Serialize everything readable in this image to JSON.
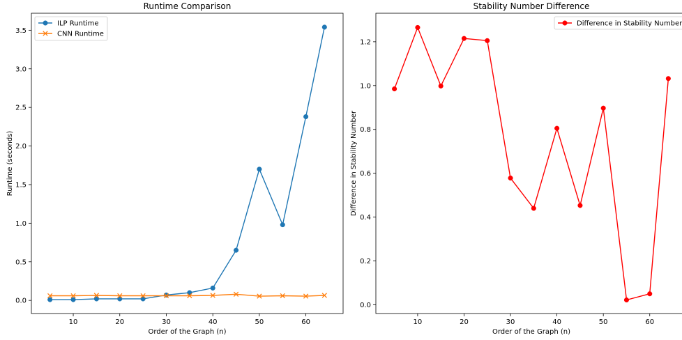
{
  "chart_data": [
    {
      "type": "line",
      "title": "Runtime Comparison",
      "xlabel": "Order of the Graph (n)",
      "ylabel": "Runtime (seconds)",
      "xlim": [
        1,
        68
      ],
      "ylim": [
        -0.17,
        3.72
      ],
      "xticks": [
        10,
        20,
        30,
        40,
        50,
        60
      ],
      "yticks": [
        0.0,
        0.5,
        1.0,
        1.5,
        2.0,
        2.5,
        3.0,
        3.5
      ],
      "x": [
        5,
        10,
        15,
        20,
        25,
        30,
        35,
        40,
        45,
        50,
        55,
        60,
        64
      ],
      "grid": false,
      "legend_position": "top-left",
      "series": [
        {
          "name": "ILP Runtime",
          "color": "#1f77b4",
          "marker": "circle",
          "values": [
            0.01,
            0.01,
            0.02,
            0.02,
            0.02,
            0.07,
            0.1,
            0.16,
            0.65,
            1.7,
            0.98,
            2.38,
            3.54
          ]
        },
        {
          "name": "CNN Runtime",
          "color": "#ff7f0e",
          "marker": "x",
          "values": [
            0.06,
            0.06,
            0.065,
            0.06,
            0.06,
            0.06,
            0.06,
            0.065,
            0.08,
            0.055,
            0.06,
            0.055,
            0.065
          ]
        }
      ]
    },
    {
      "type": "line",
      "title": "Stability Number Difference",
      "xlabel": "Order of the Graph (n)",
      "ylabel": "Difference in Stability Number",
      "xlim": [
        1,
        68
      ],
      "ylim": [
        -0.04,
        1.33
      ],
      "xticks": [
        10,
        20,
        30,
        40,
        50,
        60
      ],
      "yticks": [
        0.0,
        0.2,
        0.4,
        0.6,
        0.8,
        1.0,
        1.2
      ],
      "x": [
        5,
        10,
        15,
        20,
        25,
        30,
        35,
        40,
        45,
        50,
        55,
        60,
        64
      ],
      "grid": false,
      "legend_position": "top-right",
      "series": [
        {
          "name": "Difference in Stability Number",
          "color": "#ff0000",
          "marker": "circle",
          "values": [
            0.985,
            1.265,
            0.998,
            1.215,
            1.205,
            0.578,
            0.44,
            0.805,
            0.453,
            0.897,
            0.022,
            0.05,
            1.032
          ]
        }
      ]
    }
  ]
}
